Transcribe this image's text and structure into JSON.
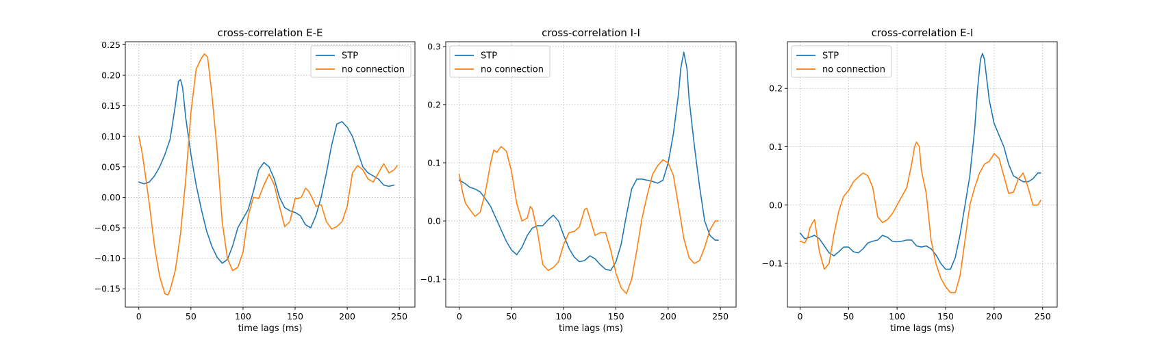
{
  "chart_data": [
    {
      "type": "line",
      "title": "cross-correlation E-E",
      "xlabel": "time lags  (ms)",
      "ylabel": "",
      "xlim": [
        -13,
        265
      ],
      "ylim": [
        -0.18,
        0.255
      ],
      "xticks": [
        0,
        50,
        100,
        150,
        200,
        250
      ],
      "xtick_labels": [
        "0",
        "50",
        "100",
        "150",
        "200",
        "250"
      ],
      "yticks": [
        -0.15,
        -0.1,
        -0.05,
        0.0,
        0.05,
        0.1,
        0.15,
        0.2,
        0.25
      ],
      "ytick_labels": [
        "−0.15",
        "−0.10",
        "−0.05",
        "0.00",
        "0.05",
        "0.10",
        "0.15",
        "0.20",
        "0.25"
      ],
      "grid": true,
      "legend": "top-right",
      "series": [
        {
          "name": "STP",
          "color": "#1f77b4",
          "x": [
            0,
            5,
            10,
            15,
            20,
            25,
            30,
            35,
            38,
            40,
            42,
            45,
            50,
            55,
            60,
            65,
            70,
            75,
            80,
            85,
            90,
            95,
            100,
            105,
            110,
            115,
            120,
            125,
            130,
            135,
            140,
            145,
            150,
            155,
            160,
            165,
            170,
            175,
            180,
            185,
            190,
            195,
            200,
            205,
            210,
            215,
            220,
            225,
            230,
            235,
            240,
            245
          ],
          "y": [
            0.025,
            0.022,
            0.025,
            0.035,
            0.05,
            0.07,
            0.095,
            0.15,
            0.19,
            0.193,
            0.18,
            0.13,
            0.07,
            0.02,
            -0.02,
            -0.055,
            -0.08,
            -0.098,
            -0.108,
            -0.102,
            -0.08,
            -0.05,
            -0.035,
            -0.02,
            0.01,
            0.045,
            0.057,
            0.05,
            0.03,
            0.0,
            -0.017,
            -0.022,
            -0.025,
            -0.03,
            -0.045,
            -0.05,
            -0.03,
            0.0,
            0.04,
            0.085,
            0.12,
            0.124,
            0.115,
            0.1,
            0.075,
            0.05,
            0.04,
            0.035,
            0.03,
            0.02,
            0.018,
            0.02
          ]
        },
        {
          "name": "no connection",
          "color": "#ff7f0e",
          "x": [
            0,
            3,
            6,
            10,
            15,
            20,
            25,
            28,
            30,
            35,
            40,
            45,
            50,
            55,
            60,
            63,
            66,
            70,
            75,
            80,
            85,
            90,
            95,
            100,
            105,
            110,
            115,
            120,
            125,
            130,
            135,
            140,
            145,
            150,
            153,
            156,
            160,
            163,
            166,
            170,
            175,
            180,
            185,
            190,
            195,
            200,
            205,
            210,
            215,
            220,
            225,
            230,
            235,
            240,
            245,
            248
          ],
          "y": [
            0.1,
            0.075,
            0.04,
            -0.01,
            -0.08,
            -0.13,
            -0.158,
            -0.16,
            -0.152,
            -0.12,
            -0.06,
            0.03,
            0.14,
            0.21,
            0.228,
            0.235,
            0.23,
            0.17,
            0.08,
            -0.04,
            -0.1,
            -0.12,
            -0.115,
            -0.09,
            -0.03,
            0.0,
            -0.002,
            0.02,
            0.038,
            0.02,
            -0.015,
            -0.048,
            -0.04,
            -0.002,
            -0.002,
            0.0,
            0.015,
            0.01,
            0.0,
            -0.015,
            -0.012,
            -0.04,
            -0.052,
            -0.048,
            -0.04,
            -0.015,
            0.04,
            0.052,
            0.045,
            0.03,
            0.025,
            0.04,
            0.055,
            0.04,
            0.045,
            0.052
          ]
        }
      ]
    },
    {
      "type": "line",
      "title": "cross-correlation I-I",
      "xlabel": "time lags  (ms)",
      "ylabel": "",
      "xlim": [
        -13,
        265
      ],
      "ylim": [
        -0.148,
        0.308
      ],
      "xticks": [
        0,
        50,
        100,
        150,
        200,
        250
      ],
      "xtick_labels": [
        "0",
        "50",
        "100",
        "150",
        "200",
        "250"
      ],
      "yticks": [
        -0.1,
        0.0,
        0.1,
        0.2,
        0.3
      ],
      "ytick_labels": [
        "−0.1",
        "0.0",
        "0.1",
        "0.2",
        "0.3"
      ],
      "grid": true,
      "legend": "top-left",
      "series": [
        {
          "name": "STP",
          "color": "#1f77b4",
          "x": [
            0,
            5,
            10,
            15,
            20,
            25,
            30,
            35,
            40,
            45,
            50,
            55,
            60,
            65,
            70,
            75,
            80,
            85,
            90,
            95,
            100,
            105,
            110,
            115,
            120,
            125,
            130,
            135,
            140,
            145,
            150,
            155,
            160,
            165,
            170,
            175,
            180,
            185,
            190,
            195,
            200,
            205,
            210,
            212,
            215,
            218,
            220,
            225,
            230,
            235,
            240,
            245,
            248
          ],
          "y": [
            0.07,
            0.065,
            0.058,
            0.055,
            0.05,
            0.038,
            0.025,
            0.005,
            -0.015,
            -0.035,
            -0.05,
            -0.058,
            -0.045,
            -0.025,
            -0.012,
            -0.008,
            -0.008,
            0.002,
            0.01,
            0.0,
            -0.025,
            -0.047,
            -0.062,
            -0.07,
            -0.068,
            -0.06,
            -0.065,
            -0.075,
            -0.083,
            -0.085,
            -0.07,
            -0.04,
            0.01,
            0.055,
            0.072,
            0.072,
            0.07,
            0.068,
            0.065,
            0.07,
            0.1,
            0.15,
            0.22,
            0.262,
            0.29,
            0.262,
            0.21,
            0.13,
            0.06,
            0.0,
            -0.025,
            -0.033,
            -0.033
          ]
        },
        {
          "name": "no connection",
          "color": "#ff7f0e",
          "x": [
            0,
            3,
            6,
            10,
            15,
            20,
            25,
            30,
            33,
            36,
            40,
            45,
            50,
            55,
            60,
            65,
            68,
            70,
            75,
            80,
            85,
            90,
            95,
            100,
            105,
            110,
            115,
            120,
            122,
            125,
            130,
            135,
            140,
            145,
            150,
            155,
            160,
            165,
            170,
            175,
            180,
            185,
            190,
            195,
            200,
            205,
            210,
            215,
            220,
            225,
            230,
            235,
            240,
            245,
            248
          ],
          "y": [
            0.08,
            0.05,
            0.03,
            0.02,
            0.008,
            0.015,
            0.05,
            0.1,
            0.122,
            0.118,
            0.128,
            0.12,
            0.085,
            0.03,
            0.0,
            0.005,
            0.025,
            0.02,
            -0.02,
            -0.075,
            -0.085,
            -0.08,
            -0.07,
            -0.04,
            -0.02,
            -0.018,
            -0.01,
            0.02,
            0.022,
            0.005,
            -0.025,
            -0.02,
            -0.02,
            -0.05,
            -0.09,
            -0.115,
            -0.125,
            -0.1,
            -0.05,
            0.005,
            0.045,
            0.08,
            0.095,
            0.105,
            0.1,
            0.078,
            0.025,
            -0.03,
            -0.063,
            -0.073,
            -0.068,
            -0.045,
            -0.015,
            0.0,
            0.0
          ]
        }
      ]
    },
    {
      "type": "line",
      "title": "cross-correlation E-I",
      "xlabel": "time lags  (ms)",
      "ylabel": "",
      "xlim": [
        -13,
        265
      ],
      "ylim": [
        -0.175,
        0.28
      ],
      "xticks": [
        0,
        50,
        100,
        150,
        200,
        250
      ],
      "xtick_labels": [
        "0",
        "50",
        "100",
        "150",
        "200",
        "250"
      ],
      "yticks": [
        -0.1,
        0.0,
        0.1,
        0.2
      ],
      "ytick_labels": [
        "−0.1",
        "0.0",
        "0.1",
        "0.2"
      ],
      "grid": true,
      "legend": "top-left",
      "series": [
        {
          "name": "STP",
          "color": "#1f77b4",
          "x": [
            0,
            5,
            10,
            15,
            20,
            25,
            30,
            35,
            40,
            45,
            50,
            55,
            60,
            65,
            70,
            75,
            80,
            85,
            90,
            95,
            100,
            105,
            110,
            115,
            120,
            125,
            130,
            135,
            140,
            145,
            150,
            155,
            160,
            165,
            170,
            175,
            180,
            183,
            186,
            188,
            190,
            195,
            200,
            205,
            210,
            215,
            220,
            225,
            230,
            235,
            240,
            245,
            248
          ],
          "y": [
            -0.048,
            -0.058,
            -0.055,
            -0.052,
            -0.058,
            -0.07,
            -0.082,
            -0.087,
            -0.08,
            -0.072,
            -0.072,
            -0.08,
            -0.082,
            -0.075,
            -0.065,
            -0.062,
            -0.06,
            -0.052,
            -0.055,
            -0.062,
            -0.063,
            -0.062,
            -0.06,
            -0.06,
            -0.07,
            -0.072,
            -0.07,
            -0.075,
            -0.085,
            -0.1,
            -0.11,
            -0.11,
            -0.09,
            -0.05,
            0.0,
            0.05,
            0.13,
            0.2,
            0.25,
            0.26,
            0.25,
            0.18,
            0.14,
            0.12,
            0.1,
            0.07,
            0.05,
            0.045,
            0.04,
            0.04,
            0.045,
            0.055,
            0.055
          ]
        },
        {
          "name": "no connection",
          "color": "#ff7f0e",
          "x": [
            0,
            5,
            8,
            10,
            13,
            15,
            20,
            25,
            30,
            35,
            40,
            45,
            50,
            55,
            60,
            65,
            70,
            75,
            80,
            85,
            90,
            95,
            100,
            105,
            110,
            115,
            118,
            120,
            123,
            125,
            130,
            135,
            140,
            145,
            150,
            155,
            160,
            165,
            170,
            175,
            180,
            185,
            190,
            195,
            200,
            205,
            210,
            215,
            220,
            225,
            230,
            235,
            240,
            245,
            248
          ],
          "y": [
            -0.062,
            -0.065,
            -0.055,
            -0.04,
            -0.03,
            -0.025,
            -0.08,
            -0.11,
            -0.1,
            -0.05,
            -0.01,
            0.015,
            0.025,
            0.04,
            0.048,
            0.055,
            0.05,
            0.03,
            -0.02,
            -0.03,
            -0.025,
            -0.015,
            0.0,
            0.015,
            0.03,
            0.07,
            0.1,
            0.108,
            0.1,
            0.06,
            0.02,
            -0.06,
            -0.1,
            -0.125,
            -0.14,
            -0.15,
            -0.15,
            -0.12,
            -0.06,
            0.0,
            0.03,
            0.055,
            0.07,
            0.075,
            0.088,
            0.08,
            0.05,
            0.02,
            0.022,
            0.045,
            0.055,
            0.03,
            0.0,
            0.0,
            0.008
          ]
        }
      ]
    }
  ]
}
